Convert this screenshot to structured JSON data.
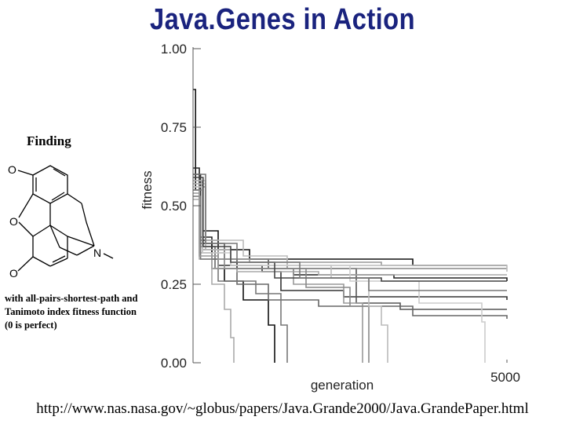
{
  "slide": {
    "title": "Java.Genes in Action",
    "finding": "Finding",
    "note": "with all-pairs-shortest-path and Tanimoto index fitness function (0 is perfect)",
    "url": "http://www.nas.nasa.gov/~globus/papers/Java.Grande2000/Java.GrandePaper.html"
  },
  "molecule": {
    "atoms": [
      "O",
      "O",
      "O",
      "N"
    ]
  },
  "chart_data": {
    "type": "line",
    "xlabel": "generation",
    "ylabel": "fitness",
    "xlim": [
      0,
      5000
    ],
    "ylim": [
      0,
      1
    ],
    "x_ticks": [
      {
        "value": 5000,
        "label": "5000"
      }
    ],
    "y_ticks": [
      {
        "value": 0,
        "label": "0.00"
      },
      {
        "value": 0.25,
        "label": "0.25"
      },
      {
        "value": 0.5,
        "label": "0.50"
      },
      {
        "value": 0.75,
        "label": "0.75"
      },
      {
        "value": 1,
        "label": "1.00"
      }
    ],
    "grid": false,
    "series": [
      {
        "color": "#111111",
        "points": [
          [
            0,
            0.87
          ],
          [
            40,
            0.55
          ],
          [
            150,
            0.42
          ],
          [
            400,
            0.36
          ],
          [
            900,
            0.33
          ],
          [
            2000,
            0.33
          ],
          [
            3500,
            0.31
          ],
          [
            5000,
            0.31
          ]
        ]
      },
      {
        "color": "#222222",
        "points": [
          [
            0,
            0.62
          ],
          [
            100,
            0.4
          ],
          [
            300,
            0.33
          ],
          [
            700,
            0.3
          ],
          [
            1600,
            0.28
          ],
          [
            3200,
            0.27
          ],
          [
            5000,
            0.26
          ]
        ]
      },
      {
        "color": "#333333",
        "points": [
          [
            0,
            0.6
          ],
          [
            120,
            0.39
          ],
          [
            400,
            0.31
          ],
          [
            1100,
            0.29
          ],
          [
            1400,
            0.23
          ],
          [
            2400,
            0.21
          ],
          [
            5000,
            0.2
          ]
        ]
      },
      {
        "color": "#111111",
        "points": [
          [
            0,
            0.55
          ],
          [
            100,
            0.38
          ],
          [
            300,
            0.3
          ],
          [
            500,
            0.26
          ],
          [
            800,
            0.2
          ],
          [
            1200,
            0.12
          ],
          [
            1300,
            0.0
          ]
        ]
      },
      {
        "color": "#555555",
        "points": [
          [
            0,
            0.58
          ],
          [
            150,
            0.38
          ],
          [
            500,
            0.33
          ],
          [
            1200,
            0.3
          ],
          [
            2600,
            0.19
          ],
          [
            3300,
            0.17
          ],
          [
            5000,
            0.17
          ]
        ]
      },
      {
        "color": "#666666",
        "points": [
          [
            0,
            0.57
          ],
          [
            100,
            0.37
          ],
          [
            350,
            0.3
          ],
          [
            700,
            0.25
          ],
          [
            1200,
            0.2
          ],
          [
            2000,
            0.18
          ],
          [
            3500,
            0.15
          ],
          [
            5000,
            0.14
          ]
        ]
      },
      {
        "color": "#888888",
        "points": [
          [
            0,
            0.56
          ],
          [
            200,
            0.36
          ],
          [
            500,
            0.33
          ],
          [
            1500,
            0.3
          ],
          [
            5000,
            0.3
          ]
        ]
      },
      {
        "color": "#999999",
        "points": [
          [
            0,
            0.56
          ],
          [
            150,
            0.36
          ],
          [
            400,
            0.33
          ],
          [
            900,
            0.32
          ],
          [
            3000,
            0.31
          ],
          [
            5000,
            0.31
          ]
        ]
      },
      {
        "color": "#aaaaaa",
        "points": [
          [
            0,
            0.55
          ],
          [
            100,
            0.35
          ],
          [
            300,
            0.3
          ],
          [
            700,
            0.29
          ],
          [
            2000,
            0.28
          ],
          [
            5000,
            0.28
          ]
        ]
      },
      {
        "color": "#bbbbbb",
        "points": [
          [
            0,
            0.58
          ],
          [
            200,
            0.39
          ],
          [
            800,
            0.34
          ],
          [
            1500,
            0.31
          ],
          [
            5000,
            0.29
          ]
        ]
      },
      {
        "color": "#aaaaaa",
        "points": [
          [
            0,
            0.52
          ],
          [
            100,
            0.33
          ],
          [
            300,
            0.25
          ],
          [
            500,
            0.17
          ],
          [
            600,
            0.08
          ],
          [
            650,
            0.0
          ]
        ]
      },
      {
        "color": "#777777",
        "points": [
          [
            0,
            0.53
          ],
          [
            120,
            0.33
          ],
          [
            400,
            0.26
          ],
          [
            1000,
            0.22
          ],
          [
            1400,
            0.12
          ],
          [
            1500,
            0.0
          ]
        ]
      },
      {
        "color": "#999999",
        "points": [
          [
            0,
            0.54
          ],
          [
            100,
            0.34
          ],
          [
            400,
            0.3
          ],
          [
            1600,
            0.25
          ],
          [
            2400,
            0.19
          ],
          [
            2700,
            0.0
          ]
        ]
      },
      {
        "color": "#888888",
        "points": [
          [
            0,
            0.55
          ],
          [
            150,
            0.35
          ],
          [
            500,
            0.3
          ],
          [
            1800,
            0.24
          ],
          [
            2500,
            0.18
          ],
          [
            2800,
            0.0
          ]
        ]
      },
      {
        "color": "#bbbbbb",
        "points": [
          [
            0,
            0.57
          ],
          [
            200,
            0.36
          ],
          [
            600,
            0.31
          ],
          [
            2200,
            0.27
          ],
          [
            2800,
            0.18
          ],
          [
            3000,
            0.12
          ],
          [
            3100,
            0.0
          ]
        ]
      },
      {
        "color": "#cccccc",
        "points": [
          [
            0,
            0.56
          ],
          [
            150,
            0.35
          ],
          [
            600,
            0.31
          ],
          [
            2500,
            0.26
          ],
          [
            3600,
            0.19
          ],
          [
            4600,
            0.13
          ],
          [
            4650,
            0.0
          ]
        ]
      },
      {
        "color": "#444444",
        "points": [
          [
            0,
            0.59
          ],
          [
            160,
            0.37
          ],
          [
            600,
            0.32
          ],
          [
            1300,
            0.27
          ],
          [
            3000,
            0.26
          ],
          [
            5000,
            0.26
          ]
        ]
      },
      {
        "color": "#777777",
        "points": [
          [
            0,
            0.6
          ],
          [
            200,
            0.38
          ],
          [
            700,
            0.32
          ],
          [
            1700,
            0.27
          ],
          [
            2800,
            0.23
          ],
          [
            5000,
            0.23
          ]
        ]
      }
    ]
  }
}
